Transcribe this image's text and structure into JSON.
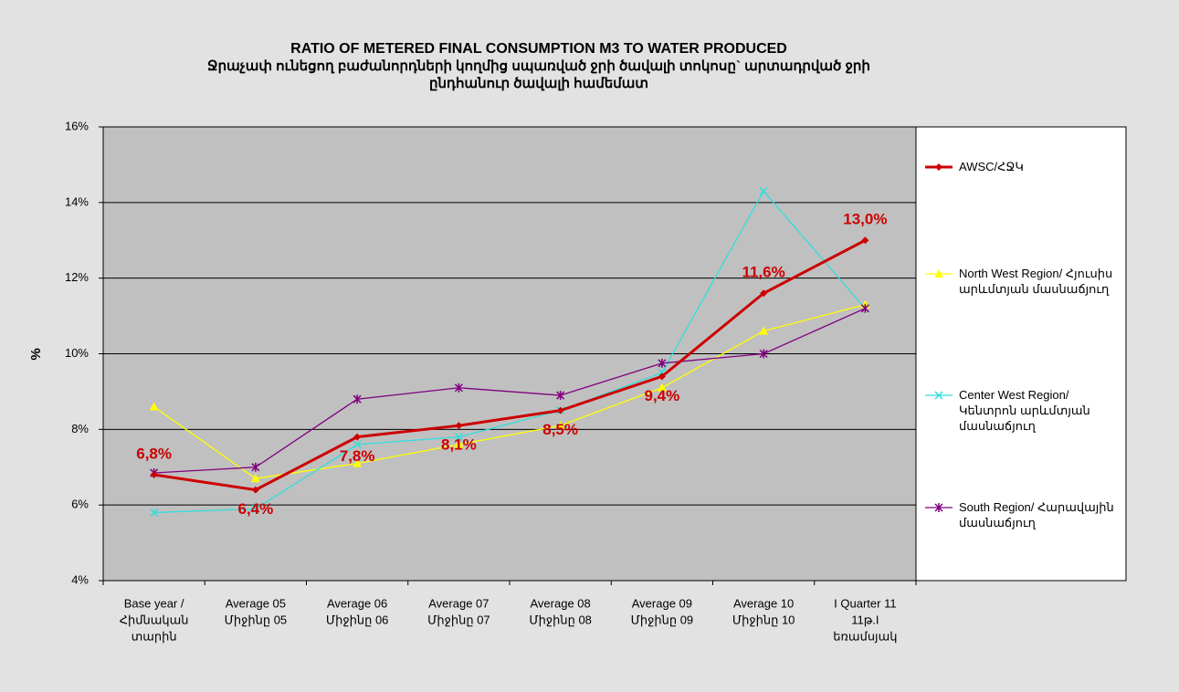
{
  "chart_data": {
    "type": "line",
    "title": "RATIO OF METERED FINAL CONSUMPTION M3 TO WATER PRODUCED",
    "subtitle": [
      "Ջրաչափ ունեցող բաժանորդների կողմից սպառված ջրի ծավալի տոկոսը` արտադրված    ջրի",
      "ընդհանուր ծավալի համեմատ"
    ],
    "ylabel": "%",
    "categories": [
      [
        "Base year /",
        "Հիմնական",
        "տարին"
      ],
      [
        "Average 05",
        "Միջինը 05"
      ],
      [
        "Average 06",
        "Միջինը 06"
      ],
      [
        "Average 07",
        "Միջինը 07"
      ],
      [
        "Average 08",
        "Միջինը 08"
      ],
      [
        "Average 09",
        "Միջինը 09"
      ],
      [
        "Average 10",
        "Միջինը 10"
      ],
      [
        "I Quarter 11",
        "11թ.I",
        "եռամսյակ"
      ]
    ],
    "ylim": [
      4,
      16
    ],
    "yticks": [
      {
        "value": 4,
        "label": "4%"
      },
      {
        "value": 6,
        "label": "6%"
      },
      {
        "value": 8,
        "label": "8%"
      },
      {
        "value": 10,
        "label": "10%"
      },
      {
        "value": 12,
        "label": "12%"
      },
      {
        "value": 14,
        "label": "14%"
      },
      {
        "value": 16,
        "label": "16%"
      }
    ],
    "grid": true,
    "legend": "right",
    "series": [
      {
        "name": "AWSC/ՀՋԿ",
        "color": "#cc0000",
        "marker": "diamond",
        "values": [
          6.8,
          6.4,
          7.8,
          8.1,
          8.5,
          9.4,
          11.6,
          13.0
        ],
        "value_labels": [
          "6,8%",
          "6,4%",
          "7,8%",
          "8,1%",
          "8,5%",
          "9,4%",
          "11,6%",
          "13,0%"
        ]
      },
      {
        "name": "North West Region/ Հյուսիս արևմտյան մասնաճյուղ",
        "color": "#ffff00",
        "marker": "triangle",
        "values": [
          8.6,
          6.7,
          7.1,
          7.6,
          8.1,
          9.1,
          10.6,
          11.3
        ]
      },
      {
        "name": "Center West Region/ Կենտրոն արևմտյան մասնաճյուղ",
        "color": "#33dddd",
        "marker": "x",
        "values": [
          5.8,
          5.9,
          7.6,
          7.8,
          8.5,
          9.5,
          14.3,
          11.2
        ]
      },
      {
        "name": "South Region/ Հարավային մասնաճյուղ",
        "color": "#800080",
        "marker": "star",
        "values": [
          6.85,
          7.0,
          8.8,
          9.1,
          8.9,
          9.75,
          10.0,
          11.2
        ]
      }
    ]
  }
}
